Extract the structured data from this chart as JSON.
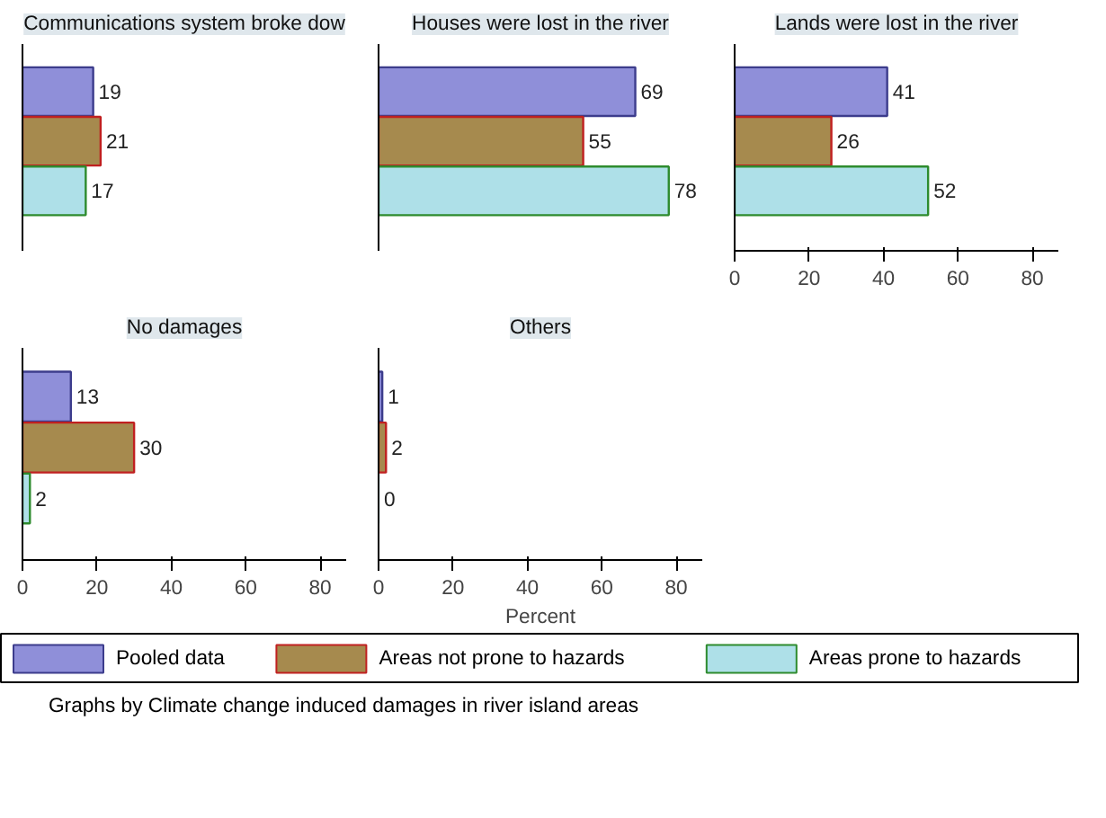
{
  "chart_data": [
    {
      "type": "bar",
      "orientation": "horizontal",
      "title": "Communications system broke dow",
      "categories": [
        null
      ],
      "series": [
        {
          "name": "Pooled data",
          "color": "#8f8fd9",
          "values": [
            19
          ]
        },
        {
          "name": "Areas not prone to hazards",
          "color": "#a68a4e",
          "values": [
            21
          ]
        },
        {
          "name": "Areas prone to hazards",
          "color": "#aee0e8",
          "values": [
            17
          ]
        }
      ],
      "data_labels": true,
      "tick_labels": false,
      "legend": "bottom",
      "annotations": [
        "Graphs by Climate change induced damages in river island areas"
      ]
    },
    {
      "type": "bar",
      "orientation": "horizontal",
      "title": "Houses were lost in the river",
      "categories": [
        null
      ],
      "series": [
        {
          "name": "Pooled data",
          "color": "#8f8fd9",
          "values": [
            69
          ]
        },
        {
          "name": "Areas not prone to hazards",
          "color": "#a68a4e",
          "values": [
            55
          ]
        },
        {
          "name": "Areas prone to hazards",
          "color": "#aee0e8",
          "values": [
            78
          ]
        }
      ],
      "data_labels": true,
      "tick_labels": false
    },
    {
      "type": "bar",
      "orientation": "horizontal",
      "title": "Lands were lost in the river",
      "categories": [
        null
      ],
      "series": [
        {
          "name": "Pooled data",
          "color": "#8f8fd9",
          "values": [
            41
          ]
        },
        {
          "name": "Areas not prone to hazards",
          "color": "#a68a4e",
          "values": [
            26
          ]
        },
        {
          "name": "Areas prone to hazards",
          "color": "#aee0e8",
          "values": [
            52
          ]
        }
      ],
      "xlim": [
        0,
        87
      ],
      "xticks": [
        0,
        20,
        40,
        60,
        80
      ],
      "data_labels": true,
      "tick_labels": "x"
    },
    {
      "type": "bar",
      "orientation": "horizontal",
      "title": "No damages",
      "categories": [
        null
      ],
      "series": [
        {
          "name": "Pooled data",
          "color": "#8f8fd9",
          "values": [
            13
          ]
        },
        {
          "name": "Areas not prone to hazards",
          "color": "#a68a4e",
          "values": [
            30
          ]
        },
        {
          "name": "Areas prone to hazards",
          "color": "#aee0e8",
          "values": [
            2
          ]
        }
      ],
      "xlim": [
        0,
        87
      ],
      "xticks": [
        0,
        20,
        40,
        60,
        80
      ],
      "data_labels": true,
      "tick_labels": "x"
    },
    {
      "type": "bar",
      "orientation": "horizontal",
      "title": "Others",
      "categories": [
        null
      ],
      "series": [
        {
          "name": "Pooled data",
          "color": "#8f8fd9",
          "values": [
            1
          ]
        },
        {
          "name": "Areas not prone to hazards",
          "color": "#a68a4e",
          "values": [
            2
          ]
        },
        {
          "name": "Areas prone to hazards",
          "color": "#aee0e8",
          "values": [
            0
          ]
        }
      ],
      "xlim": [
        0,
        87
      ],
      "xticks": [
        0,
        20,
        40,
        60,
        80
      ],
      "data_labels": true,
      "tick_labels": "x",
      "xlabel": "Percent"
    }
  ]
}
